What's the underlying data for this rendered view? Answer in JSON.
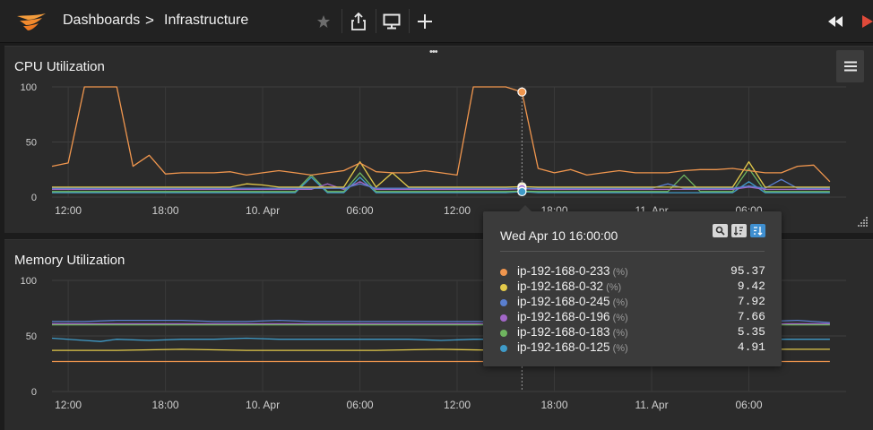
{
  "header": {
    "breadcrumb_root": "Dashboards",
    "breadcrumb_sep": ">",
    "breadcrumb_current": "Infrastructure"
  },
  "colors": {
    "orange": "#f0964e",
    "yellow": "#e3ca4a",
    "blue": "#5a7fcf",
    "purple": "#a267c8",
    "green": "#6fb55f",
    "teal": "#3f9bc8",
    "brand": "#f39c3c",
    "play_red": "#e04a3a"
  },
  "cpu_panel": {
    "title": "CPU Utilization",
    "drag_handle": "•••"
  },
  "mem_panel": {
    "title": "Memory Utilization"
  },
  "tooltip": {
    "title": "Wed Apr 10 16:00:00",
    "unit": "(%)",
    "rows": [
      {
        "name": "ip-192-168-0-233",
        "value": "95.37",
        "color": "#f0964e"
      },
      {
        "name": "ip-192-168-0-32",
        "value": "9.42",
        "color": "#e3ca4a"
      },
      {
        "name": "ip-192-168-0-245",
        "value": "7.92",
        "color": "#5a7fcf"
      },
      {
        "name": "ip-192-168-0-196",
        "value": "7.66",
        "color": "#a267c8"
      },
      {
        "name": "ip-192-168-0-183",
        "value": "5.35",
        "color": "#6fb55f"
      },
      {
        "name": "ip-192-168-0-125",
        "value": "4.91",
        "color": "#3f9bc8"
      }
    ]
  },
  "chart_data": [
    {
      "type": "line",
      "title": "CPU Utilization",
      "ylim": [
        0,
        100
      ],
      "y_ticks": [
        "0",
        "50",
        "100"
      ],
      "x_ticks": [
        "12:00",
        "18:00",
        "10. Apr",
        "06:00",
        "12:00",
        "18:00",
        "11. Apr",
        "06:00"
      ],
      "x_tick_hours": [
        0,
        6,
        12,
        18,
        24,
        30,
        36,
        42
      ],
      "x_range_hours": [
        -1,
        48
      ],
      "crosshair_hour": 28,
      "grid": true,
      "series": [
        {
          "name": "ip-192-168-0-233",
          "color": "#f0964e",
          "x": [
            -1,
            0,
            1,
            2,
            3,
            4,
            5,
            6,
            7,
            8,
            9,
            10,
            11,
            12,
            13,
            14,
            15,
            16,
            17,
            18,
            19,
            20,
            21,
            22,
            23,
            24,
            25,
            26,
            27,
            28,
            29,
            30,
            31,
            32,
            33,
            34,
            35,
            36,
            37,
            38,
            39,
            40,
            41,
            42,
            43,
            44,
            45,
            46,
            47
          ],
          "y": [
            28,
            31,
            100,
            100,
            100,
            28,
            38,
            21,
            22,
            22,
            22,
            23,
            20,
            22,
            24,
            22,
            20,
            22,
            24,
            31,
            23,
            22,
            22,
            24,
            22,
            20,
            100,
            100,
            100,
            95.37,
            26,
            22,
            25,
            20,
            22,
            24,
            22,
            22,
            22,
            24,
            25,
            25,
            26,
            24,
            22,
            22,
            28,
            29,
            14
          ]
        },
        {
          "name": "ip-192-168-0-32",
          "color": "#e3ca4a",
          "x": [
            -1,
            0,
            1,
            2,
            3,
            4,
            5,
            6,
            7,
            8,
            9,
            10,
            11,
            12,
            13,
            14,
            15,
            16,
            17,
            18,
            19,
            20,
            21,
            22,
            23,
            24,
            25,
            26,
            27,
            28,
            29,
            30,
            31,
            32,
            33,
            34,
            35,
            36,
            37,
            38,
            39,
            40,
            41,
            42,
            43,
            44,
            45,
            46,
            47
          ],
          "y": [
            9,
            9,
            9,
            9,
            9,
            9,
            9,
            9,
            9,
            9,
            9,
            9,
            12,
            11,
            9,
            9,
            9,
            9,
            9,
            32,
            9,
            22,
            9,
            9,
            9,
            9,
            9,
            9,
            9,
            9.42,
            9,
            9,
            9,
            9,
            9,
            9,
            9,
            9,
            9,
            9,
            9,
            9,
            9,
            32,
            9,
            9,
            9,
            9,
            9
          ]
        },
        {
          "name": "ip-192-168-0-245",
          "color": "#5a7fcf",
          "x": [
            -1,
            0,
            1,
            2,
            3,
            4,
            5,
            6,
            7,
            8,
            9,
            10,
            11,
            12,
            13,
            14,
            15,
            16,
            17,
            18,
            19,
            20,
            21,
            22,
            23,
            24,
            25,
            26,
            27,
            28,
            29,
            30,
            31,
            32,
            33,
            34,
            35,
            36,
            37,
            38,
            39,
            40,
            41,
            42,
            43,
            44,
            45,
            46,
            47
          ],
          "y": [
            8,
            8,
            8,
            8,
            8,
            8,
            8,
            8,
            8,
            8,
            8,
            8,
            8,
            8,
            8,
            8,
            8,
            8,
            8,
            12,
            8,
            8,
            8,
            8,
            8,
            8,
            8,
            8,
            8,
            7.92,
            8,
            8,
            8,
            8,
            8,
            8,
            8,
            8,
            12,
            8,
            8,
            8,
            8,
            10,
            8,
            16,
            8,
            8,
            8
          ]
        },
        {
          "name": "ip-192-168-0-196",
          "color": "#a267c8",
          "x": [
            -1,
            0,
            1,
            2,
            3,
            4,
            5,
            6,
            7,
            8,
            9,
            10,
            11,
            12,
            13,
            14,
            15,
            16,
            17,
            18,
            19,
            20,
            21,
            22,
            23,
            24,
            25,
            26,
            27,
            28,
            29,
            30,
            31,
            32,
            33,
            34,
            35,
            36,
            37,
            38,
            39,
            40,
            41,
            42,
            43,
            44,
            45,
            46,
            47
          ],
          "y": [
            7,
            7,
            7,
            7,
            7,
            7,
            7,
            7,
            7,
            7,
            7,
            7,
            7,
            7,
            7,
            7,
            7,
            12,
            7,
            14,
            7,
            7,
            7,
            7,
            7,
            7,
            7,
            7,
            7,
            7.66,
            7,
            7,
            7,
            7,
            7,
            7,
            7,
            7,
            7,
            7,
            7,
            7,
            7,
            9,
            7,
            7,
            7,
            7,
            7
          ]
        },
        {
          "name": "ip-192-168-0-183",
          "color": "#6fb55f",
          "x": [
            -1,
            0,
            1,
            2,
            3,
            4,
            5,
            6,
            7,
            8,
            9,
            10,
            11,
            12,
            13,
            14,
            15,
            16,
            17,
            18,
            19,
            20,
            21,
            22,
            23,
            24,
            25,
            26,
            27,
            28,
            29,
            30,
            31,
            32,
            33,
            34,
            35,
            36,
            37,
            38,
            39,
            40,
            41,
            42,
            43,
            44,
            45,
            46,
            47
          ],
          "y": [
            5,
            5,
            5,
            5,
            5,
            5,
            5,
            5,
            5,
            5,
            5,
            5,
            5,
            5,
            5,
            5,
            20,
            5,
            5,
            22,
            5,
            5,
            5,
            5,
            5,
            5,
            5,
            5,
            5,
            5.35,
            5,
            5,
            5,
            5,
            5,
            5,
            5,
            5,
            5,
            20,
            5,
            5,
            5,
            26,
            5,
            5,
            5,
            5,
            5
          ]
        },
        {
          "name": "ip-192-168-0-125",
          "color": "#3f9bc8",
          "x": [
            -1,
            0,
            1,
            2,
            3,
            4,
            5,
            6,
            7,
            8,
            9,
            10,
            11,
            12,
            13,
            14,
            15,
            16,
            17,
            18,
            19,
            20,
            21,
            22,
            23,
            24,
            25,
            26,
            27,
            28,
            29,
            30,
            31,
            32,
            33,
            34,
            35,
            36,
            37,
            38,
            39,
            40,
            41,
            42,
            43,
            44,
            45,
            46,
            47
          ],
          "y": [
            4,
            4,
            4,
            4,
            4,
            4,
            4,
            4,
            4,
            4,
            4,
            4,
            4,
            4,
            4,
            4,
            18,
            4,
            4,
            18,
            4,
            4,
            4,
            4,
            4,
            4,
            4,
            4,
            4,
            4.91,
            4,
            4,
            4,
            4,
            4,
            4,
            4,
            4,
            4,
            4,
            4,
            4,
            4,
            14,
            4,
            4,
            4,
            4,
            4
          ]
        }
      ]
    },
    {
      "type": "line",
      "title": "Memory Utilization",
      "ylim": [
        0,
        100
      ],
      "y_ticks": [
        "0",
        "50",
        "100"
      ],
      "x_ticks": [
        "12:00",
        "18:00",
        "10. Apr",
        "06:00",
        "12:00",
        "18:00",
        "11. Apr",
        "06:00"
      ],
      "x_tick_hours": [
        0,
        6,
        12,
        18,
        24,
        30,
        36,
        42
      ],
      "x_range_hours": [
        -1,
        48
      ],
      "crosshair_hour": 28,
      "grid": true,
      "series": [
        {
          "name": "ip-192-168-0-233",
          "color": "#f0964e",
          "x": [
            -1,
            3,
            7,
            11,
            15,
            19,
            23,
            27,
            31,
            35,
            39,
            43,
            47
          ],
          "y": [
            27,
            27,
            27,
            27,
            27,
            27,
            27,
            27,
            27,
            27,
            27,
            27,
            27
          ]
        },
        {
          "name": "ip-192-168-0-32",
          "color": "#e3ca4a",
          "x": [
            -1,
            3,
            7,
            11,
            15,
            19,
            23,
            27,
            31,
            35,
            39,
            43,
            47
          ],
          "y": [
            37,
            37,
            38,
            37,
            37,
            37,
            38,
            37,
            37,
            37,
            38,
            38,
            38
          ]
        },
        {
          "name": "ip-192-168-0-245",
          "color": "#5a7fcf",
          "x": [
            -1,
            1,
            3,
            5,
            7,
            9,
            11,
            13,
            15,
            17,
            19,
            21,
            23,
            25,
            27,
            29,
            31,
            33,
            35,
            37,
            39,
            41,
            43,
            45,
            47
          ],
          "y": [
            63,
            63,
            64,
            64,
            64,
            63,
            63,
            64,
            63,
            63,
            63,
            63,
            63,
            63,
            63,
            63,
            63,
            63,
            63,
            63,
            63,
            63,
            63,
            64,
            62
          ]
        },
        {
          "name": "ip-192-168-0-196",
          "color": "#a267c8",
          "x": [
            -1,
            3,
            7,
            11,
            15,
            19,
            23,
            27,
            31,
            35,
            39,
            43,
            47
          ],
          "y": [
            61,
            61,
            61,
            61,
            61,
            61,
            61,
            61,
            61,
            61,
            61,
            61,
            61
          ]
        },
        {
          "name": "ip-192-168-0-183",
          "color": "#6fb55f",
          "x": [
            -1,
            3,
            7,
            11,
            15,
            19,
            23,
            27,
            31,
            35,
            39,
            43,
            47
          ],
          "y": [
            60,
            60,
            60,
            60,
            60,
            60,
            60,
            60,
            60,
            60,
            60,
            60,
            60
          ]
        },
        {
          "name": "ip-192-168-0-125",
          "color": "#3f9bc8",
          "x": [
            -1,
            1,
            2,
            3,
            5,
            7,
            9,
            11,
            13,
            15,
            17,
            19,
            21,
            23,
            25,
            27,
            29,
            31,
            33,
            35,
            37,
            39,
            41,
            43,
            45,
            47
          ],
          "y": [
            48,
            46,
            45,
            47,
            46,
            47,
            47,
            48,
            47,
            47,
            47,
            47,
            47,
            46,
            47,
            47,
            47,
            47,
            47,
            46,
            47,
            47,
            47,
            47,
            47,
            47
          ]
        }
      ]
    }
  ]
}
